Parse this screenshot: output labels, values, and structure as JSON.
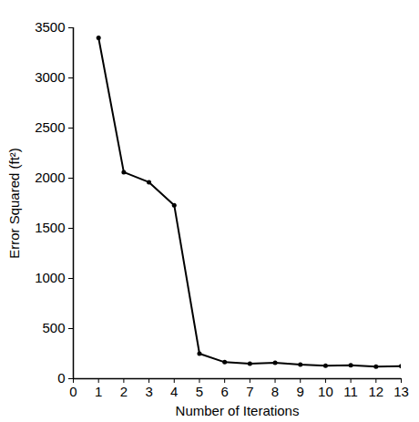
{
  "chart_data": {
    "type": "line",
    "x": [
      1,
      2,
      3,
      4,
      5,
      6,
      7,
      8,
      9,
      10,
      11,
      12,
      13
    ],
    "values": [
      3400,
      2060,
      1960,
      1730,
      250,
      165,
      150,
      160,
      140,
      130,
      135,
      120,
      125
    ],
    "color": "#000000",
    "marker": "circle",
    "line_style": "solid",
    "xlabel": "Number of Iterations",
    "ylabel": "Error Squared (ft²)",
    "xlim": [
      0,
      13
    ],
    "xticks": [
      0,
      1,
      2,
      3,
      4,
      5,
      6,
      7,
      8,
      9,
      10,
      11,
      12,
      13
    ],
    "ylim": [
      0,
      3500
    ],
    "yticks": [
      0,
      500,
      1000,
      1500,
      2000,
      2500,
      3000,
      3500
    ],
    "grid": false
  }
}
